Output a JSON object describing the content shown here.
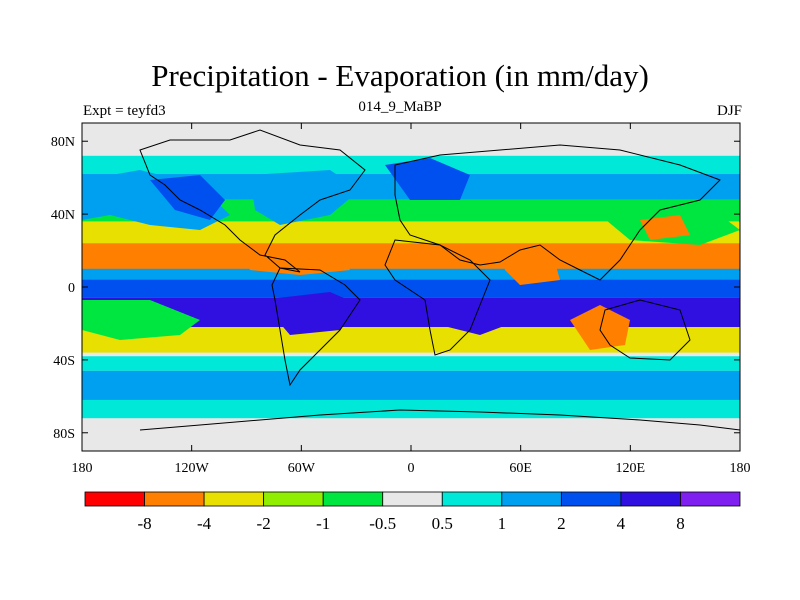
{
  "title": "Precipitation - Evaporation (in mm/day)",
  "left_label": "Expt = teyfd3",
  "center_label": "014_9_MaBP",
  "right_label": "DJF",
  "x_ticks": [
    "180",
    "120W",
    "60W",
    "0",
    "60E",
    "120E",
    "180"
  ],
  "y_ticks": [
    "80N",
    "40N",
    "0",
    "40S",
    "80S"
  ],
  "colorbar": {
    "colors": [
      "#ff0000",
      "#ff8000",
      "#e8e000",
      "#90ee00",
      "#00e640",
      "#e8e8e8",
      "#00e8d8",
      "#00a0f0",
      "#0050f0",
      "#3010e0",
      "#8020f0"
    ],
    "labels": [
      "-8",
      "-4",
      "-2",
      "-1",
      "-0.5",
      "0.5",
      "1",
      "2",
      "4",
      "8"
    ]
  },
  "zones": [
    {
      "lat_range": [
        62,
        72
      ],
      "color": "#00e8d8"
    },
    {
      "lat_range": [
        48,
        62
      ],
      "color": "#00a0f0"
    },
    {
      "lat_range": [
        28,
        48
      ],
      "color": "#00e640"
    },
    {
      "lat_range": [
        22,
        36
      ],
      "color": "#e8e000"
    },
    {
      "lat_range": [
        8,
        24
      ],
      "color": "#ff8000"
    },
    {
      "lat_range": [
        3,
        10
      ],
      "color": "#00a0f0"
    },
    {
      "lat_range": [
        -6,
        4
      ],
      "color": "#0050f0"
    },
    {
      "lat_range": [
        -22,
        -6
      ],
      "color": "#3010e0"
    },
    {
      "lat_range": [
        -36,
        -22
      ],
      "color": "#e8e000"
    },
    {
      "lat_range": [
        -46,
        -38
      ],
      "color": "#00e8d8"
    },
    {
      "lat_range": [
        -62,
        -46
      ],
      "color": "#00a0f0"
    },
    {
      "lat_range": [
        -72,
        -62
      ],
      "color": "#00e8d8"
    }
  ]
}
